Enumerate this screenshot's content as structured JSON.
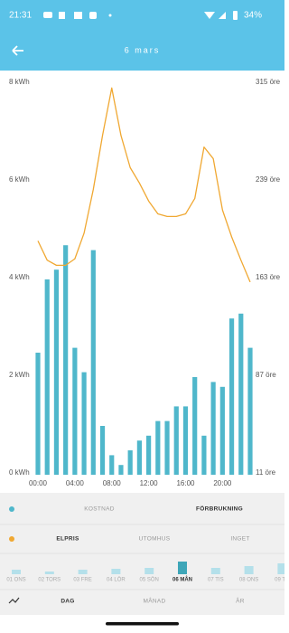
{
  "status_bar": {
    "time": "21:31",
    "battery": "34%"
  },
  "header": {
    "title": "6 mars"
  },
  "chart_data": {
    "type": "bar-line",
    "categories": [
      "00:00",
      null,
      null,
      null,
      "04:00",
      null,
      null,
      null,
      "08:00",
      null,
      null,
      null,
      "12:00",
      null,
      null,
      null,
      "16:00",
      null,
      null,
      null,
      "20:00",
      null,
      null,
      null
    ],
    "series": [
      {
        "type": "bar",
        "color": "#4fb7cb",
        "values": [
          2.5,
          4.0,
          4.2,
          4.7,
          2.6,
          2.1,
          4.6,
          1.0,
          0.4,
          0.2,
          0.5,
          0.7,
          0.8,
          1.1,
          1.1,
          1.4,
          1.4,
          2.0,
          0.8,
          1.9,
          1.8,
          3.2,
          3.3,
          2.6
        ]
      },
      {
        "type": "line",
        "axis": "y2",
        "color": "#f0a832",
        "values": [
          193,
          178,
          174,
          174,
          179,
          199,
          233,
          275,
          312,
          275,
          250,
          238,
          224,
          214,
          212,
          212,
          214,
          226,
          266,
          257,
          217,
          196,
          178,
          161
        ]
      }
    ],
    "ylim": [
      0,
      8
    ],
    "yticks": [
      {
        "value": 0,
        "label": "0 kWh"
      },
      {
        "value": 2,
        "label": "2 kWh"
      },
      {
        "value": 4,
        "label": "4 kWh"
      },
      {
        "value": 6,
        "label": "6 kWh"
      },
      {
        "value": 8,
        "label": "8 kWh"
      }
    ],
    "y2lim": [
      11,
      315
    ],
    "y2ticks": [
      {
        "value": 11,
        "label": "11 öre"
      },
      {
        "value": 87,
        "label": "87 öre"
      },
      {
        "value": 163,
        "label": "163 öre"
      },
      {
        "value": 239,
        "label": "239 öre"
      },
      {
        "value": 315,
        "label": "315 öre"
      }
    ],
    "grid": false
  },
  "controls": {
    "bars_options": [
      "KOSTNAD",
      "FÖRBRUKNING"
    ],
    "line_options": [
      "ELPRIS",
      "UTOMHUS",
      "INGET"
    ]
  },
  "day_strip": {
    "days": [
      "01 ONS",
      "02 TORS",
      "03 FRE",
      "04 LÖR",
      "05 SÖN",
      "06 MÅN",
      "07 TIS",
      "08 ONS",
      "09 TO"
    ],
    "values": [
      5,
      3,
      5,
      6,
      7,
      14,
      7,
      9,
      12
    ]
  },
  "bottom_nav": {
    "tabs": [
      "DAG",
      "MÅNAD",
      "ÅR"
    ]
  }
}
